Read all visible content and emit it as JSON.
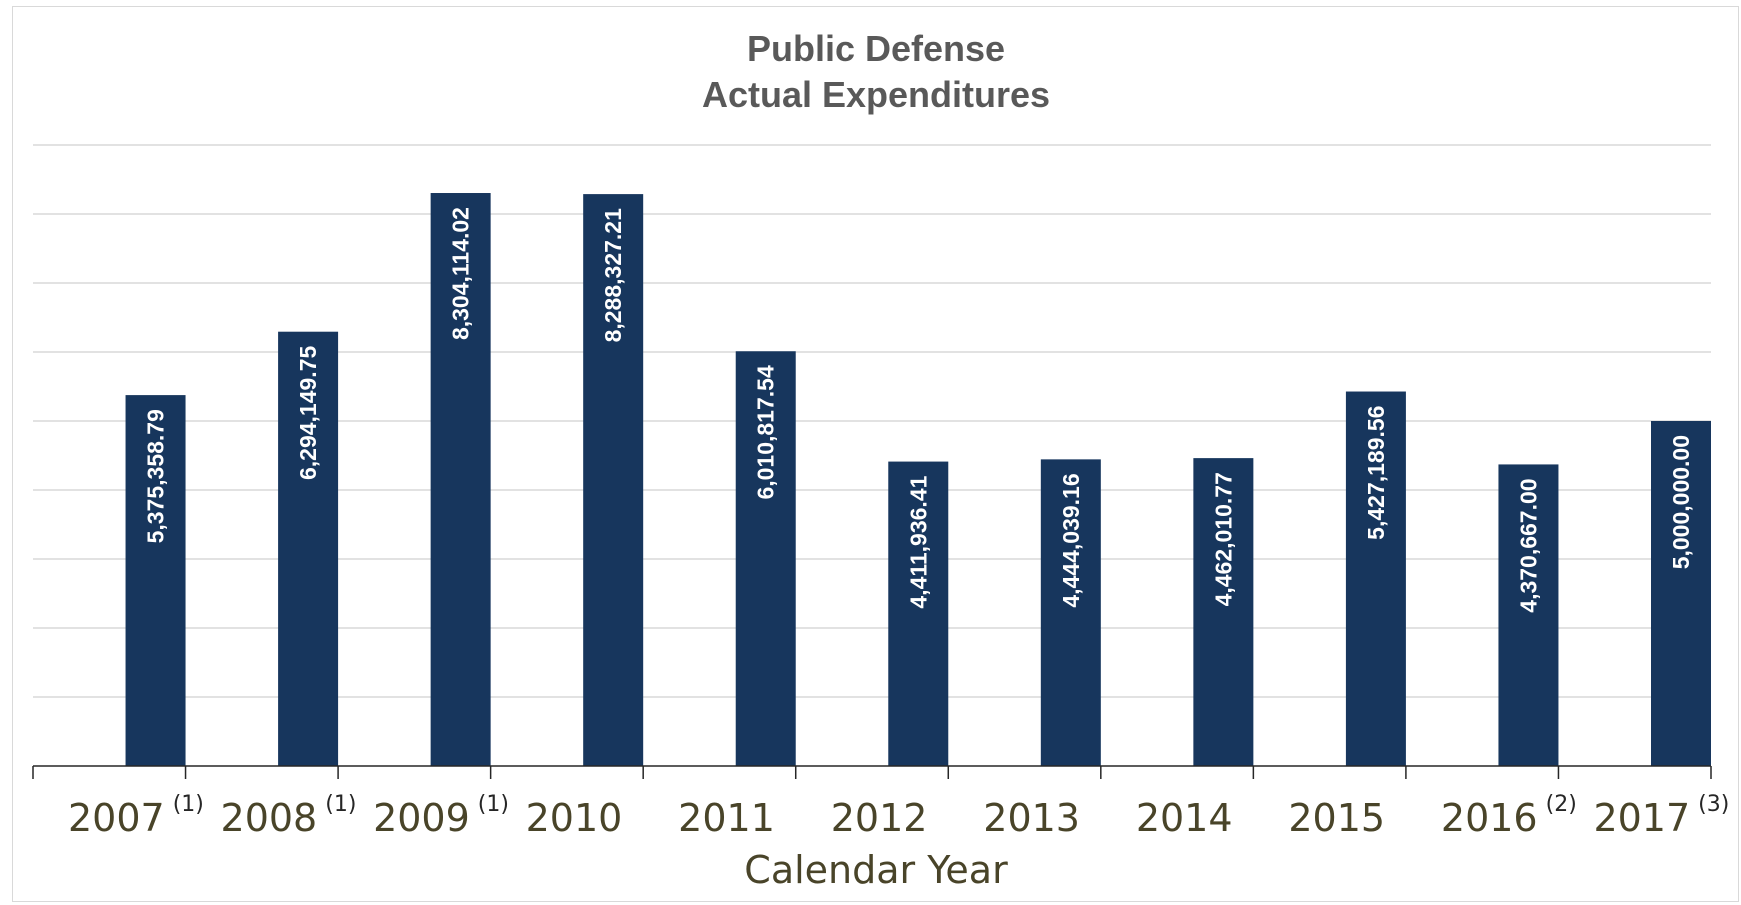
{
  "chart_data": {
    "type": "bar",
    "title": [
      "Public Defense",
      "Actual Expenditures"
    ],
    "xlabel": "Calendar Year",
    "ylabel": "",
    "ylim": [
      0,
      9000000
    ],
    "y_gridline_step": 1000000,
    "y_tick_labels_shown": false,
    "grid": true,
    "legend": "none",
    "categories": [
      "2007",
      "2008",
      "2009",
      "2010",
      "2011",
      "2012",
      "2013",
      "2014",
      "2015",
      "2016",
      "2017"
    ],
    "category_notes": [
      "(1)",
      "(1)",
      "(1)",
      "",
      "",
      "",
      "",
      "",
      "",
      "(2)",
      "(3)"
    ],
    "values": [
      5375358.79,
      6294149.75,
      8304114.02,
      8288327.21,
      6010817.54,
      4411936.41,
      4444039.16,
      4462010.77,
      5427189.56,
      4370667.0,
      5000000.0
    ],
    "data_labels": [
      "5,375,358.79",
      "6,294,149.75",
      "8,304,114.02",
      "8,288,327.21",
      "6,010,817.54",
      "4,411,936.41",
      "4,444,039.16",
      "4,462,010.77",
      "5,427,189.56",
      "4,370,667.00",
      "5,000,000.00"
    ],
    "colors": {
      "bar": "#17365d",
      "title": "#595959",
      "axis_text": "#494429",
      "gridline": "#d9d9d9",
      "axis_line": "#262626",
      "data_label": "#ffffff"
    }
  }
}
